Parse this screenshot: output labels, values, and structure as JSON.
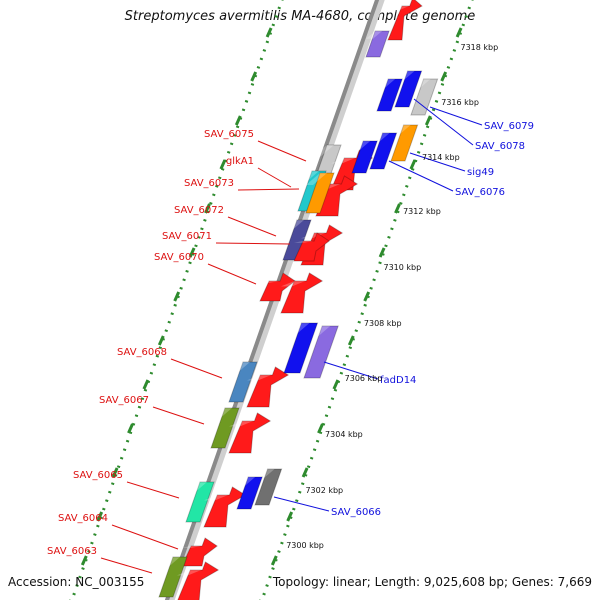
{
  "title": "Streptomyces avermitilis MA-4680, complete genome",
  "footer": {
    "accession": "Accession: NC_003155",
    "summary": "Topology: linear; Length: 9,025,608 bp; Genes: 7,669"
  },
  "colors": {
    "backbone": "#8a8a8a",
    "tick_marks": "#2e8b2e",
    "left_labels": "#dd1111",
    "right_labels": "#1111dd",
    "ruler_labels": "#111111"
  },
  "ruler": [
    "7300 kbp",
    "7302 kbp",
    "7304 kbp",
    "7306 kbp",
    "7308 kbp",
    "7310 kbp",
    "7312 kbp",
    "7314 kbp",
    "7316 kbp",
    "7318 kbp"
  ],
  "genes_left": [
    {
      "label": "SAV_6075",
      "color": "#c8c8c8"
    },
    {
      "label": "glkA1",
      "color": "#22c8cc"
    },
    {
      "label": "SAV_6073",
      "color": "#ff9a00"
    },
    {
      "label": "SAV_6072",
      "color": "#4a4a9a"
    },
    {
      "label": "SAV_6071",
      "color": "#ff1a1a"
    },
    {
      "label": "SAV_6070",
      "color": "#ff1a1a"
    },
    {
      "label": "SAV_6068",
      "color": "#4a86c0"
    },
    {
      "label": "SAV_6067",
      "color": "#6f9a22"
    },
    {
      "label": "SAV_6065",
      "color": "#22e6a6"
    },
    {
      "label": "SAV_6064",
      "color": "#ff1a1a"
    },
    {
      "label": "SAV_6063",
      "color": "#6f9a22"
    }
  ],
  "genes_right": [
    {
      "label": "SAV_6079",
      "color": "#c8c8c8"
    },
    {
      "label": "SAV_6078",
      "color": "#1111ee"
    },
    {
      "label": "sig49",
      "color": "#ff9a00"
    },
    {
      "label": "SAV_6076",
      "color": "#1111ee"
    },
    {
      "label": "fadD14",
      "color": "#8a6ae0"
    },
    {
      "label": "SAV_6066",
      "color": "#707070"
    }
  ]
}
